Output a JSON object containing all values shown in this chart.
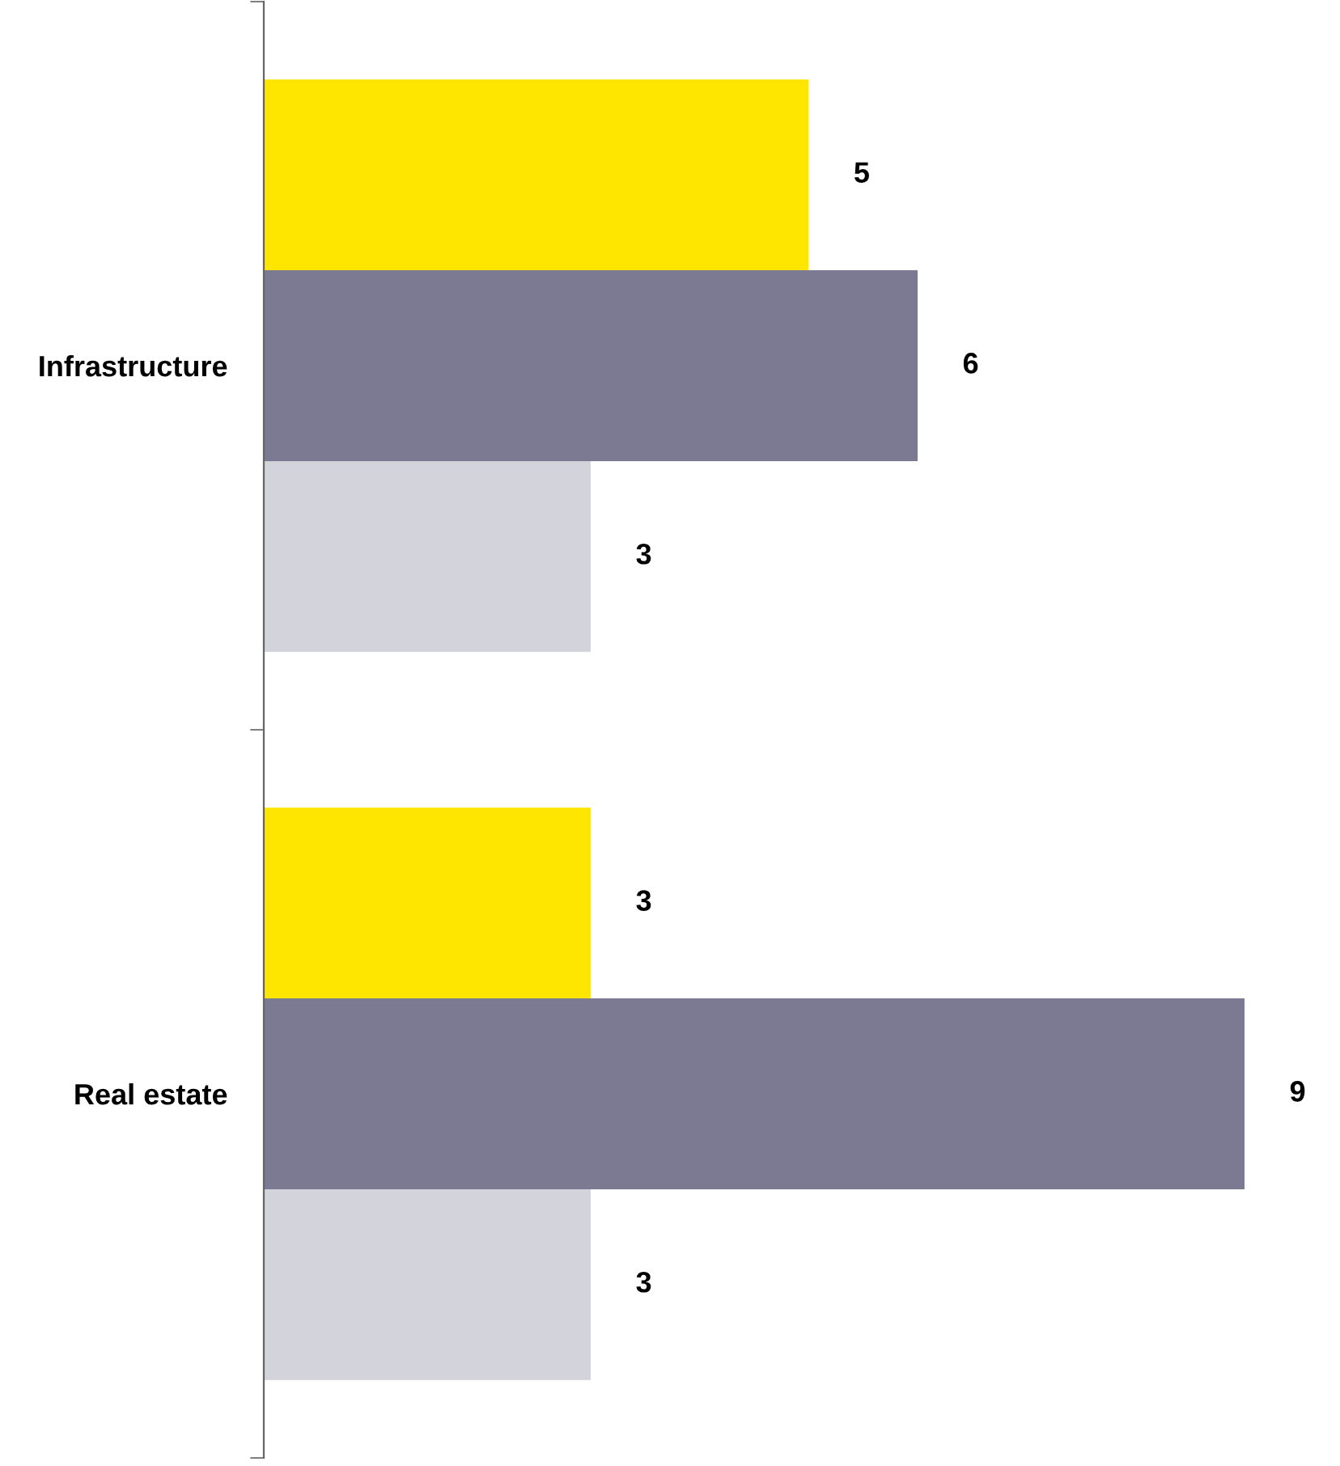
{
  "chart_data": {
    "type": "bar",
    "orientation": "horizontal",
    "categories": [
      "Infrastructure",
      "Real estate"
    ],
    "series": [
      {
        "color": "#ffe600",
        "values": [
          5,
          3
        ]
      },
      {
        "color": "#7b7a92",
        "values": [
          6,
          9
        ]
      },
      {
        "color": "#d2d3db",
        "values": [
          3,
          3
        ]
      }
    ],
    "data_labels": true,
    "grid": false,
    "legend": false,
    "tick_labels": "y"
  }
}
